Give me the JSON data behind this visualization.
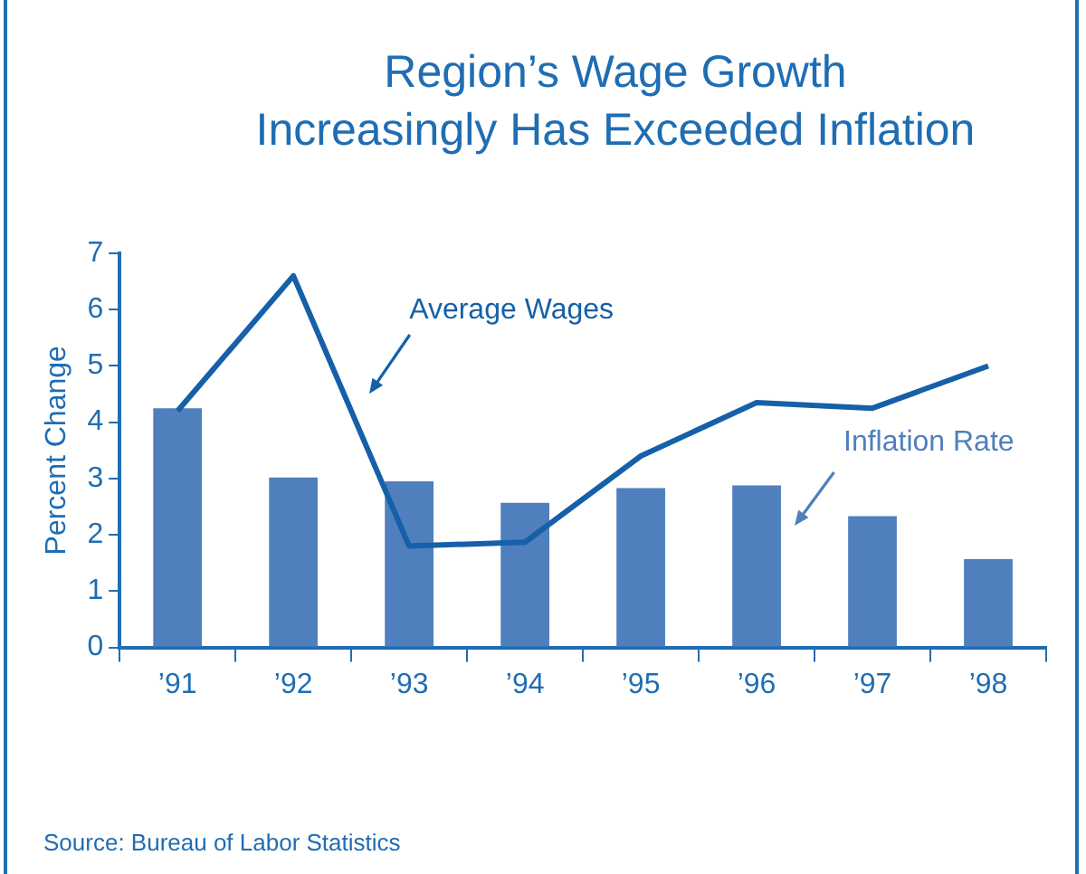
{
  "chart_data": {
    "type": "bar",
    "title": "Region’s Wage Growth\nIncreasingly Has Exceeded Inflation",
    "ylabel": "Percent Change",
    "categories": [
      "’91",
      "’92",
      "’93",
      "’94",
      "’95",
      "’96",
      "’97",
      "’98"
    ],
    "series": [
      {
        "name": "Inflation Rate",
        "color": "#4f7fbd",
        "values": [
          4.25,
          3.02,
          2.95,
          2.57,
          2.83,
          2.88,
          2.33,
          1.57
        ]
      },
      {
        "name": "Average Wages",
        "type": "line",
        "color": "#1560a8",
        "values": [
          4.2,
          6.6,
          1.8,
          1.87,
          3.4,
          4.35,
          4.25,
          5.0
        ]
      }
    ],
    "ylim": [
      0,
      7
    ],
    "yticks": [
      0,
      1,
      2,
      3,
      4,
      5,
      6,
      7
    ],
    "grid": false,
    "legend": false,
    "marker": "none",
    "line_style": "solid",
    "annotations": [
      "Source: Bureau of Labor Statistics"
    ]
  }
}
